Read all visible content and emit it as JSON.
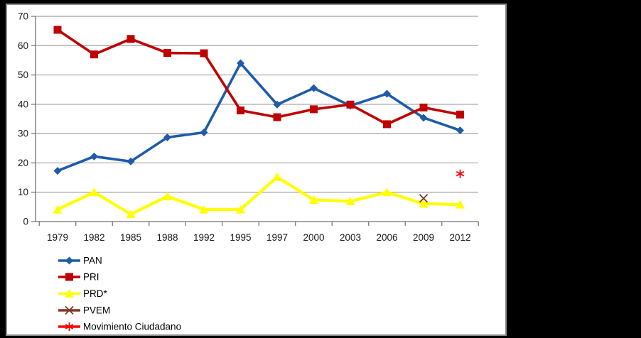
{
  "chart_data": {
    "type": "line",
    "title": "",
    "xlabel": "",
    "ylabel": "",
    "categories": [
      "1979",
      "1982",
      "1985",
      "1988",
      "1992",
      "1995",
      "1997",
      "2000",
      "2003",
      "2006",
      "2009",
      "2012"
    ],
    "series": [
      {
        "name": "PAN",
        "color": "#1f5ba9",
        "marker": "diamond",
        "values": [
          17.3,
          22.2,
          20.5,
          28.7,
          30.4,
          54.0,
          39.9,
          45.5,
          39.5,
          43.6,
          35.4,
          31.1
        ]
      },
      {
        "name": "PRI",
        "color": "#c00000",
        "marker": "square",
        "values": [
          65.4,
          57.0,
          62.3,
          57.5,
          57.4,
          37.9,
          35.6,
          38.3,
          39.9,
          33.2,
          38.9,
          36.5
        ]
      },
      {
        "name": "PRD*",
        "color": "#ffff00",
        "marker": "triangle",
        "values": [
          4.1,
          10.0,
          2.5,
          8.6,
          4.1,
          4.1,
          15.2,
          7.4,
          6.9,
          10.0,
          6.1,
          5.8
        ]
      },
      {
        "name": "PVEM",
        "color": "#7e3a26",
        "marker": "x",
        "values": [
          null,
          null,
          null,
          null,
          null,
          null,
          null,
          null,
          null,
          null,
          7.9,
          null
        ]
      },
      {
        "name": "Movimiento Ciudadano",
        "color": "#ff0000",
        "marker": "asterisk",
        "values": [
          null,
          null,
          null,
          null,
          null,
          null,
          null,
          null,
          null,
          null,
          null,
          16.3
        ]
      }
    ],
    "ylim": [
      0,
      70
    ],
    "ytick_step": 10,
    "y_tick_labels": [
      "0",
      "10",
      "20",
      "30",
      "40",
      "50",
      "60",
      "70"
    ],
    "x_tick_labels": [
      "1979",
      "1982",
      "1985",
      "1988",
      "1992",
      "1995",
      "1997",
      "2000",
      "2003",
      "2006",
      "2009",
      "2012"
    ],
    "grid": "horizontal",
    "legend_position": "bottom-left",
    "legend_entries": [
      "PAN",
      "PRI",
      "PRD*",
      "PVEM",
      "Movimiento Ciudadano"
    ]
  },
  "colors": {
    "page_background": "#000000",
    "chart_background": "#ffffff",
    "chart_border": "#8e8e8e",
    "gridline": "#a3a3a3",
    "axis": "#707070",
    "tick_text": "#1a1a1a",
    "legend_text": "#000000"
  }
}
